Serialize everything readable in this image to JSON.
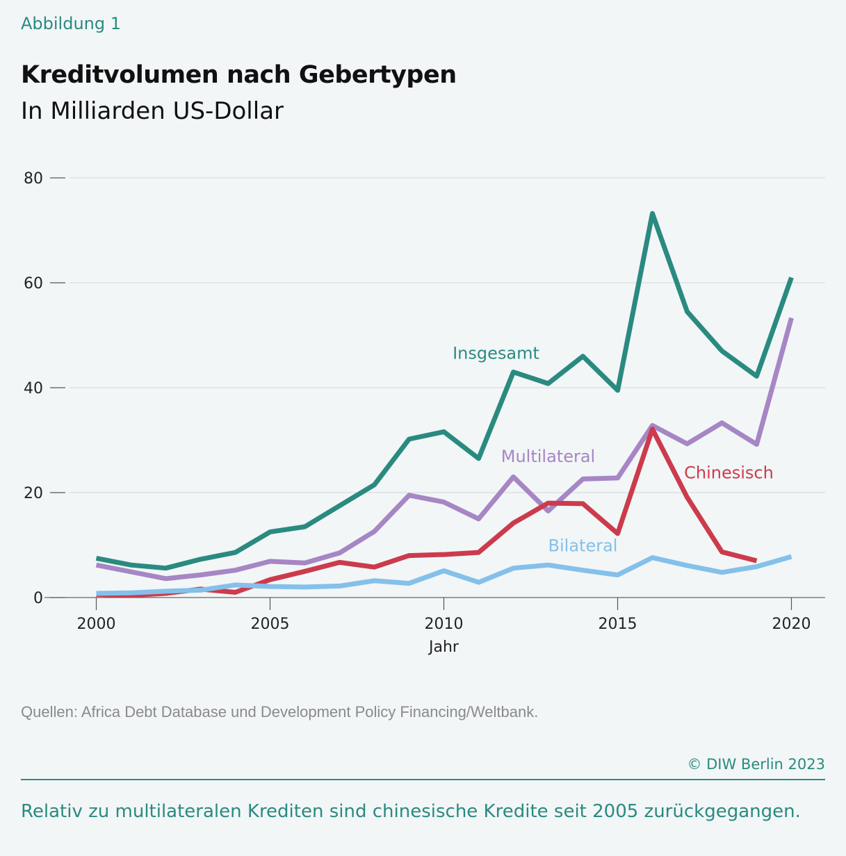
{
  "figure_label": "Abbildung 1",
  "title": "Kreditvolumen nach Gebertypen",
  "subtitle": "In Milliarden US-Dollar",
  "source": "Quellen: Africa Debt Database und Development Policy Financing/Weltbank.",
  "copyright": "© DIW Berlin 2023",
  "takeaway": "Relativ zu multilateralen Krediten sind chinesische Kredite seit 2005 zurückgegangen.",
  "chart_data": {
    "type": "line",
    "title": "Kreditvolumen nach Gebertypen",
    "subtitle": "In Milliarden US-Dollar",
    "xlabel": "Jahr",
    "ylabel": "",
    "xlim": [
      1999.5,
      2021
    ],
    "ylim": [
      0,
      80
    ],
    "x_ticks": [
      2000,
      2005,
      2010,
      2015,
      2020
    ],
    "y_ticks": [
      0,
      20,
      40,
      60,
      80
    ],
    "grid": true,
    "legend": "inline",
    "series": [
      {
        "name": "Insgesamt",
        "color": "#2a8a80",
        "x": [
          2000,
          2001,
          2002,
          2003,
          2004,
          2005,
          2006,
          2007,
          2008,
          2009,
          2010,
          2011,
          2012,
          2013,
          2014,
          2015,
          2016,
          2017,
          2018,
          2019,
          2020
        ],
        "values": [
          7.5,
          6.2,
          5.6,
          7.3,
          8.6,
          12.5,
          13.5,
          17.5,
          21.5,
          30.2,
          31.6,
          26.5,
          43.0,
          40.8,
          46.0,
          39.5,
          73.2,
          54.5,
          47.0,
          42.2,
          61.0
        ],
        "label": {
          "text": "Insgesamt",
          "x": 2011.5,
          "y": 45.5
        }
      },
      {
        "name": "Multilateral",
        "color": "#a686c4",
        "x": [
          2000,
          2001,
          2002,
          2003,
          2004,
          2005,
          2006,
          2007,
          2008,
          2009,
          2010,
          2011,
          2012,
          2013,
          2014,
          2015,
          2016,
          2017,
          2018,
          2019,
          2020
        ],
        "values": [
          6.2,
          4.9,
          3.6,
          4.3,
          5.2,
          6.9,
          6.6,
          8.5,
          12.6,
          19.5,
          18.2,
          15.0,
          23.0,
          16.5,
          22.6,
          22.8,
          32.8,
          29.3,
          33.3,
          29.2,
          53.3
        ],
        "label": {
          "text": "Multilateral",
          "x": 2013,
          "y": 25.8
        }
      },
      {
        "name": "Chinesisch",
        "color": "#cc3b4c",
        "x": [
          2000,
          2001,
          2002,
          2003,
          2004,
          2005,
          2006,
          2007,
          2008,
          2009,
          2010,
          2011,
          2012,
          2013,
          2014,
          2015,
          2016,
          2017,
          2018,
          2019
        ],
        "values": [
          0.6,
          0.4,
          0.8,
          1.6,
          1.0,
          3.4,
          5.0,
          6.7,
          5.8,
          8.0,
          8.2,
          8.6,
          14.2,
          18.0,
          17.9,
          12.2,
          32.1,
          19.1,
          8.7,
          7.0
        ],
        "label": {
          "text": "Chinesisch",
          "x": 2018.2,
          "y": 22.7
        }
      },
      {
        "name": "Bilateral",
        "color": "#84c0ea",
        "x": [
          2000,
          2001,
          2002,
          2003,
          2004,
          2005,
          2006,
          2007,
          2008,
          2009,
          2010,
          2011,
          2012,
          2013,
          2014,
          2015,
          2016,
          2017,
          2018,
          2019,
          2020
        ],
        "values": [
          0.8,
          0.9,
          1.2,
          1.4,
          2.4,
          2.1,
          2.0,
          2.2,
          3.2,
          2.7,
          5.1,
          2.9,
          5.6,
          6.2,
          5.2,
          4.3,
          7.6,
          6.1,
          4.8,
          5.9,
          7.8
        ],
        "label": {
          "text": "Bilateral",
          "x": 2014,
          "y": 8.8
        }
      }
    ]
  }
}
